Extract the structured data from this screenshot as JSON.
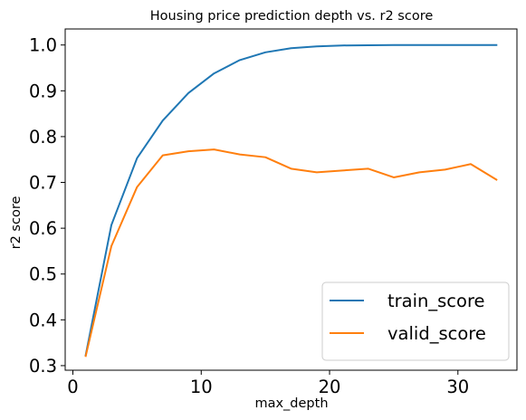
{
  "chart_data": {
    "type": "line",
    "title": "Housing price prediction depth vs. r2 score",
    "xlabel": "max_depth",
    "ylabel": "r2 score",
    "xlim": [
      -0.6,
      34.6
    ],
    "ylim": [
      0.29,
      1.035
    ],
    "xticks": [
      0,
      10,
      20,
      30
    ],
    "xtick_labels": [
      "0",
      "10",
      "20",
      "30"
    ],
    "yticks": [
      0.3,
      0.4,
      0.5,
      0.6,
      0.7,
      0.8,
      0.9,
      1.0
    ],
    "ytick_labels": [
      "0.3",
      "0.4",
      "0.5",
      "0.6",
      "0.7",
      "0.8",
      "0.9",
      "1.0"
    ],
    "grid": false,
    "legend_position": "bottom-right",
    "x": [
      1,
      3,
      5,
      7,
      9,
      11,
      13,
      15,
      17,
      19,
      21,
      23,
      25,
      27,
      29,
      31,
      33
    ],
    "series": [
      {
        "name": "train_score",
        "color": "#1f77b4",
        "values": [
          0.323,
          0.607,
          0.753,
          0.835,
          0.895,
          0.938,
          0.967,
          0.984,
          0.993,
          0.997,
          0.999,
          0.9995,
          1.0,
          1.0,
          1.0,
          1.0,
          1.0
        ]
      },
      {
        "name": "valid_score",
        "color": "#ff7f0e",
        "values": [
          0.321,
          0.561,
          0.69,
          0.759,
          0.768,
          0.772,
          0.761,
          0.755,
          0.73,
          0.722,
          0.726,
          0.73,
          0.711,
          0.722,
          0.728,
          0.74,
          0.706
        ]
      }
    ]
  }
}
